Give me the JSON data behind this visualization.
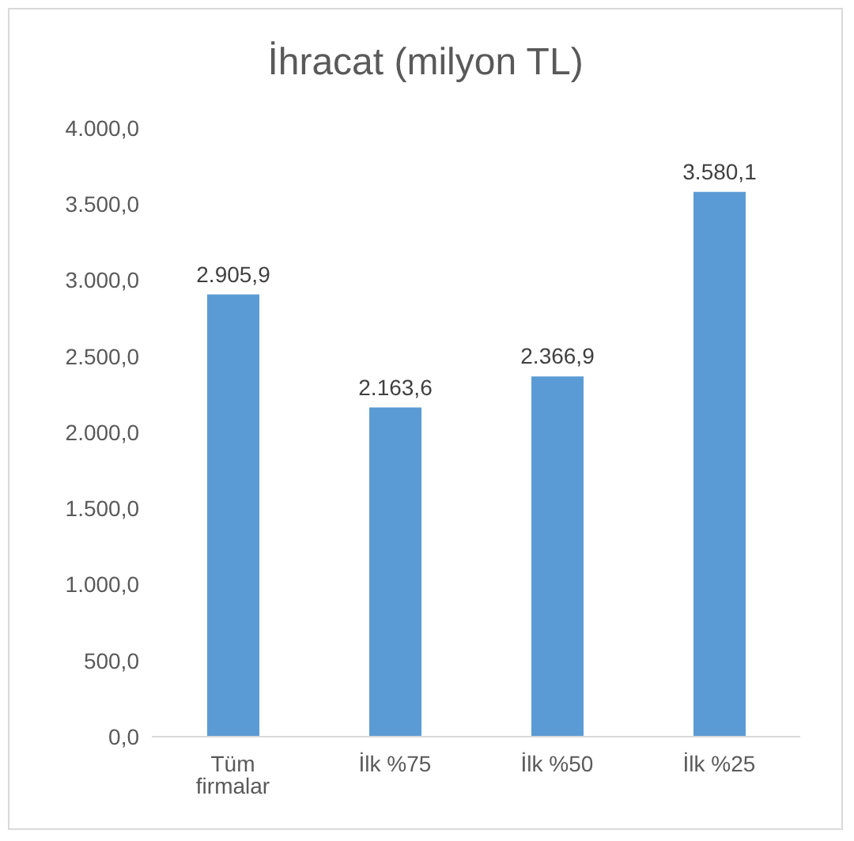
{
  "chart_data": {
    "type": "bar",
    "title": "İhracat (milyon TL)",
    "categories": [
      "Tüm firmalar",
      "İlk %75",
      "İlk %50",
      "İlk %25"
    ],
    "values": [
      2905.9,
      2163.6,
      2366.9,
      3580.1
    ],
    "value_labels": [
      "2.905,9",
      "2.163,6",
      "2.366,9",
      "3.580,1"
    ],
    "color": "#5b9bd5",
    "ylim": [
      0,
      4000
    ],
    "yticks": [
      {
        "value": 0,
        "label": "0,0"
      },
      {
        "value": 500,
        "label": "500,0"
      },
      {
        "value": 1000,
        "label": "1.000,0"
      },
      {
        "value": 1500,
        "label": "1.500,0"
      },
      {
        "value": 2000,
        "label": "2.000,0"
      },
      {
        "value": 2500,
        "label": "2.500,0"
      },
      {
        "value": 3000,
        "label": "3.000,0"
      },
      {
        "value": 3500,
        "label": "3.500,0"
      },
      {
        "value": 4000,
        "label": "4.000,0"
      }
    ],
    "grid": false,
    "legend": false
  }
}
